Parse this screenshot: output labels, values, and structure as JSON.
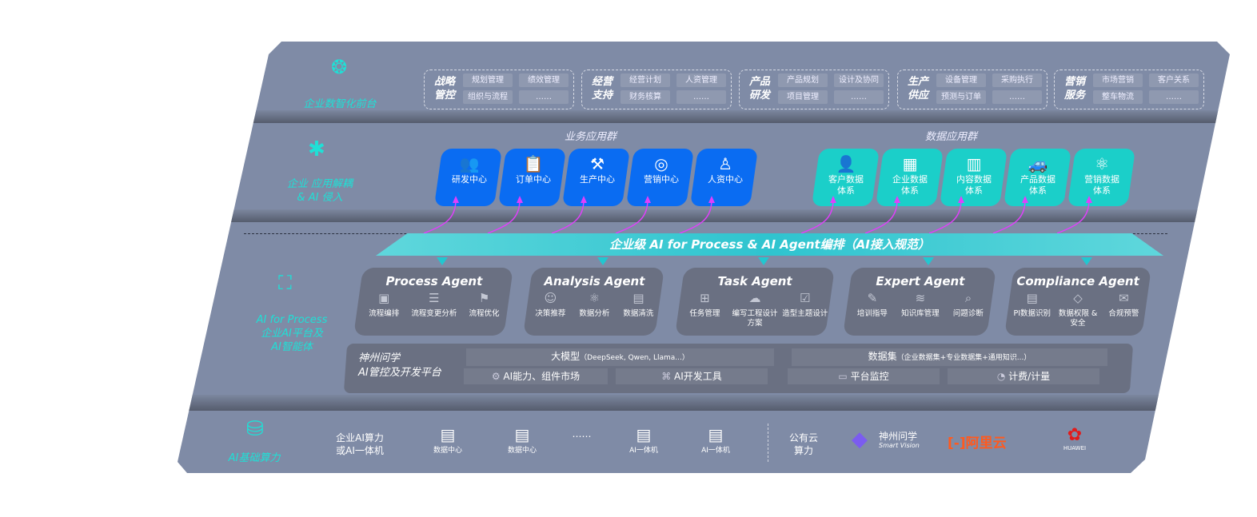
{
  "layers": {
    "front": "企业数智化前台",
    "apps": [
      "企业 应用解耦",
      "& AI 侵入"
    ],
    "ai": [
      "AI for Process",
      "企业AI平台及",
      "AI智能体"
    ],
    "compute": "AI基础算力"
  },
  "groups": [
    {
      "title": [
        "战略",
        "管控"
      ],
      "chips": [
        "规划管理",
        "绩效管理",
        "组织与流程",
        "……"
      ]
    },
    {
      "title": [
        "经营",
        "支持"
      ],
      "chips": [
        "经营计划",
        "人资管理",
        "财务核算",
        "……"
      ]
    },
    {
      "title": [
        "产品",
        "研发"
      ],
      "chips": [
        "产品规划",
        "设计及协同",
        "项目管理",
        "……"
      ]
    },
    {
      "title": [
        "生产",
        "供应"
      ],
      "chips": [
        "设备管理",
        "采购执行",
        "预测与订单",
        "……"
      ]
    },
    {
      "title": [
        "营销",
        "服务"
      ],
      "chips": [
        "市场营销",
        "客户关系",
        "整车物流",
        "……"
      ]
    }
  ],
  "business_group": {
    "title": "业务应用群",
    "cards": [
      {
        "label": "研发中心",
        "icon": "users-icon"
      },
      {
        "label": "订单中心",
        "icon": "clipboard-icon"
      },
      {
        "label": "生产中心",
        "icon": "factory-icon"
      },
      {
        "label": "营销中心",
        "icon": "target-icon"
      },
      {
        "label": "人资中心",
        "icon": "person-icon"
      }
    ]
  },
  "data_group": {
    "title": "数据应用群",
    "cards": [
      {
        "label": [
          "客户数据",
          "体系"
        ],
        "icon": "user-icon"
      },
      {
        "label": [
          "企业数据",
          "体系"
        ],
        "icon": "building-icon"
      },
      {
        "label": [
          "内容数据",
          "体系"
        ],
        "icon": "books-icon"
      },
      {
        "label": [
          "产品数据",
          "体系"
        ],
        "icon": "car-icon"
      },
      {
        "label": [
          "营销数据",
          "体系"
        ],
        "icon": "atom-icon"
      }
    ]
  },
  "banner": "企业级 AI for Process & AI Agent编排（AI接入规范）",
  "agents": [
    {
      "title": "Process Agent",
      "items": [
        "流程编排",
        "流程变更分析",
        "流程优化"
      ]
    },
    {
      "title": "Analysis Agent",
      "items": [
        "决策推荐",
        "数据分析",
        "数据清洗"
      ]
    },
    {
      "title": "Task Agent",
      "items": [
        "任务管理",
        "编写工程设计方案",
        "造型主题设计"
      ]
    },
    {
      "title": "Expert Agent",
      "items": [
        "培训指导",
        "知识库管理",
        "问题诊断"
      ]
    },
    {
      "title": "Compliance Agent",
      "items": [
        "PI数据识别",
        "数据权限 & 安全",
        "合规预警"
      ]
    }
  ],
  "platform": {
    "name": [
      "神州问学",
      "AI管控及开发平台"
    ],
    "model": "大模型",
    "model_note": "（DeepSeek, Qwen, Llama...）",
    "dataset": "数据集",
    "dataset_note": "（企业数据集+专业数据集+通用知识...）",
    "tools": [
      "AI能力、组件市场",
      "AI开发工具",
      "平台监控",
      "计费/计量"
    ]
  },
  "compute": {
    "onprem": [
      "企业AI算力",
      "或AI一体机"
    ],
    "servers": [
      "数据中心",
      "数据中心",
      "AI一体机",
      "AI一体机"
    ],
    "ellipsis": "……",
    "cloud": [
      "公有云",
      "算力"
    ],
    "vendors": {
      "shenzhou": "神州问学",
      "shenzhou_sub": "Smart Vision",
      "aliyun": "阿里云",
      "huawei": "HUAWEI"
    }
  },
  "colors": {
    "bg": "#7f8ba6",
    "blue": "#0a6cf2",
    "teal": "#1bcfc9",
    "accent": "#1fe0d6",
    "arrow": "#e040fb"
  }
}
